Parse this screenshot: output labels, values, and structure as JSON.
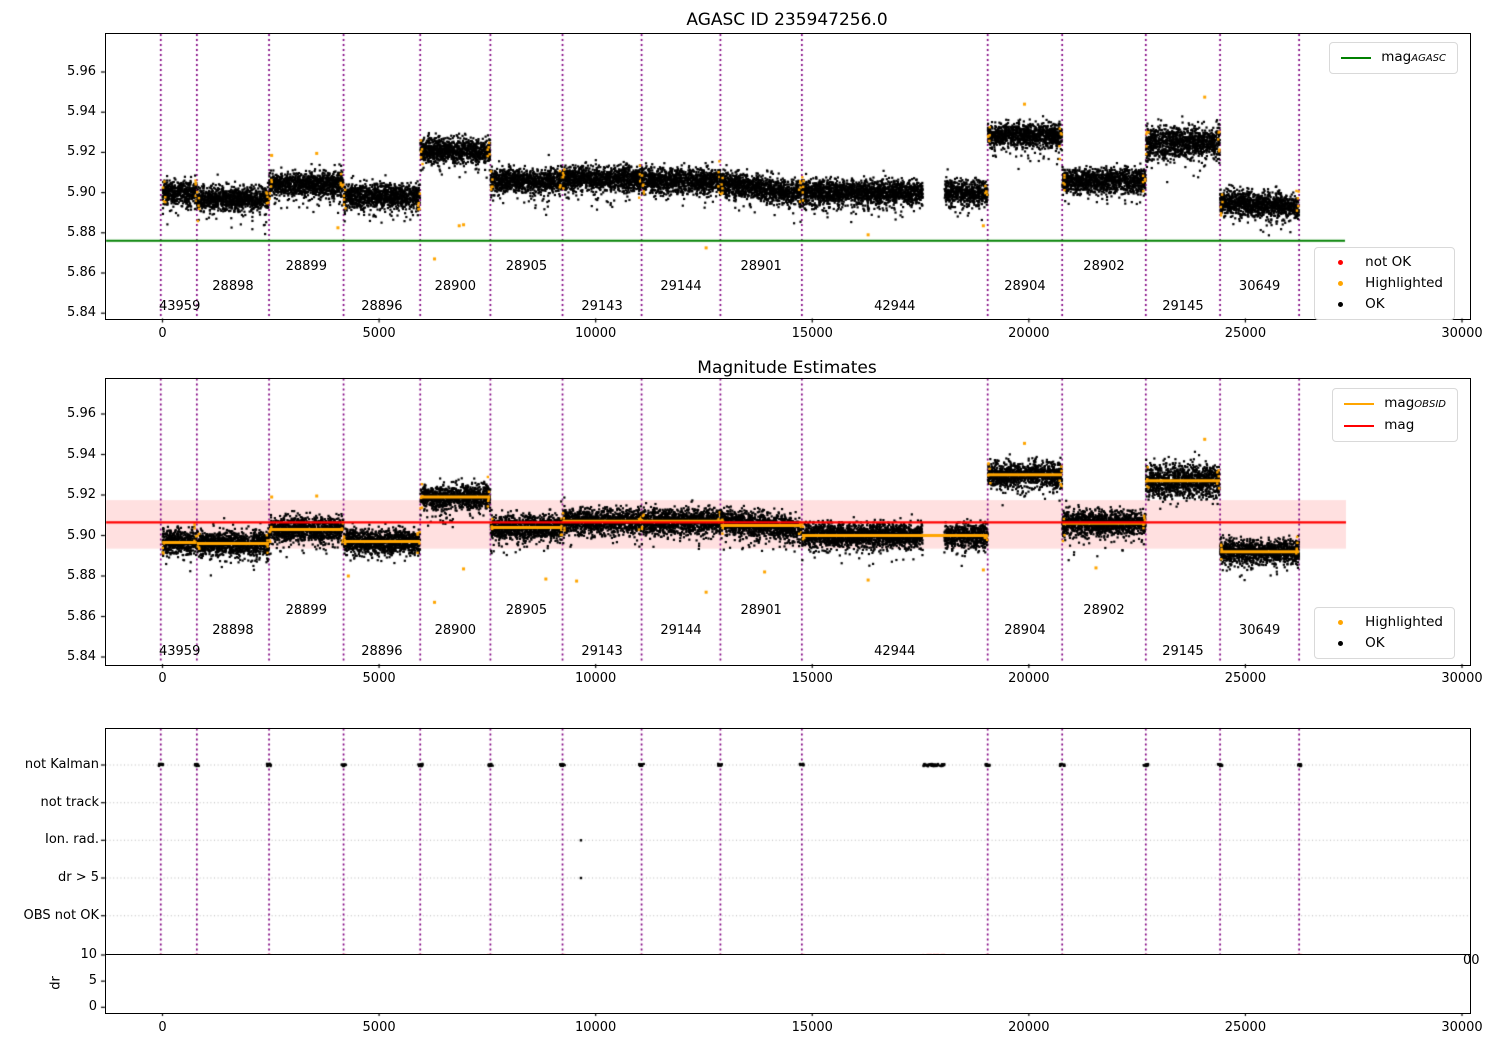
{
  "figure": {
    "colors": {
      "ok": "#000000",
      "highlighted": "#ffa500",
      "not_ok": "#ff0000",
      "mag_agasc": "#008000",
      "mag": "#ff0000",
      "mag_obsid": "#ffa500",
      "boundary": "#800080",
      "band": "rgba(255,0,0,0.12)",
      "grid": "#b8b8b8"
    }
  },
  "top_plot": {
    "title": "AGASC ID 235947256.0",
    "legend_mag": {
      "main": "mag",
      "sub": "AGASC"
    },
    "legend_flags": [
      {
        "label": "not OK",
        "color": "not_ok"
      },
      {
        "label": "Highlighted",
        "color": "highlighted"
      },
      {
        "label": "OK",
        "color": "ok"
      }
    ]
  },
  "middle_plot": {
    "title": "Magnitude Estimates",
    "legend_lines": [
      {
        "main": "mag",
        "sub": "OBSID",
        "color": "mag_obsid"
      },
      {
        "main": "mag",
        "sub": "",
        "color": "mag"
      }
    ],
    "legend_flags": [
      {
        "label": "Highlighted",
        "color": "highlighted"
      },
      {
        "label": "OK",
        "color": "ok"
      }
    ]
  },
  "bottom_plot": {
    "dr_label": "dr",
    "clipped_tick": "00"
  },
  "chart_data": {
    "type": "scatter",
    "titles": [
      "AGASC ID 235947256.0",
      "Magnitude Estimates"
    ],
    "x_ticks": [
      0,
      5000,
      10000,
      15000,
      20000,
      25000,
      30000
    ],
    "x_tick_labels": [
      "0",
      "5000",
      "10000",
      "15000",
      "20000",
      "25000",
      "30000"
    ],
    "mag_yticks": [
      5.84,
      5.86,
      5.88,
      5.9,
      5.92,
      5.94,
      5.96
    ],
    "mag_ytick_labels": [
      "5.84",
      "5.86",
      "5.88",
      "5.90",
      "5.92",
      "5.94",
      "5.96"
    ],
    "mag_agasc": 5.876,
    "mag": 5.9065,
    "mag_band": [
      5.8935,
      5.9175
    ],
    "data_gap": [
      17550,
      18050
    ],
    "boundaries": [
      -40,
      793,
      2460,
      4180,
      5950,
      7570,
      9235,
      11060,
      12880,
      14760,
      19050,
      20770,
      22700,
      24415,
      26240
    ],
    "obsids": [
      {
        "obsid": "43959",
        "start": -40,
        "end": 793,
        "mag_top": 5.9,
        "mag_obsid": 5.8965,
        "row": 2
      },
      {
        "obsid": "28898",
        "start": 793,
        "end": 2460,
        "mag_top": 5.897,
        "mag_obsid": 5.896,
        "row": 1
      },
      {
        "obsid": "28899",
        "start": 2460,
        "end": 4180,
        "mag_top": 5.904,
        "mag_obsid": 5.903,
        "row": 0
      },
      {
        "obsid": "28896",
        "start": 4180,
        "end": 5950,
        "mag_top": 5.898,
        "mag_obsid": 5.897,
        "row": 2
      },
      {
        "obsid": "28900",
        "start": 5950,
        "end": 7570,
        "mag_top": 5.921,
        "mag_obsid": 5.919,
        "row": 1
      },
      {
        "obsid": "28905",
        "start": 7570,
        "end": 9235,
        "mag_top": 5.906,
        "mag_obsid": 5.904,
        "row": 0
      },
      {
        "obsid": "29143",
        "start": 9235,
        "end": 11060,
        "mag_top": 5.907,
        "mag_obsid": 5.907,
        "row": 2
      },
      {
        "obsid": "29144",
        "start": 11060,
        "end": 12880,
        "mag_top": 5.906,
        "mag_obsid": 5.907,
        "row": 1
      },
      {
        "obsid": "28901",
        "start": 12880,
        "end": 14760,
        "mag_top": 5.902,
        "mag_obsid": 5.905,
        "row": 0,
        "trend_top": -0.006,
        "trend_mid": -0.004
      },
      {
        "obsid": "42944",
        "start": 14760,
        "end": 19050,
        "mag_top": 5.9,
        "mag_obsid": 5.9,
        "row": 2,
        "has_gap": true
      },
      {
        "obsid": "28904",
        "start": 19050,
        "end": 20770,
        "mag_top": 5.9285,
        "mag_obsid": 5.93,
        "row": 1
      },
      {
        "obsid": "28902",
        "start": 20770,
        "end": 22700,
        "mag_top": 5.906,
        "mag_obsid": 5.906,
        "row": 0
      },
      {
        "obsid": "29145",
        "start": 22700,
        "end": 24415,
        "mag_top": 5.925,
        "mag_obsid": 5.927,
        "row": 2,
        "spread_top": 1.3,
        "spread_mid": 1.4
      },
      {
        "obsid": "30649",
        "start": 24415,
        "end": 26240,
        "mag_top": 5.894,
        "mag_obsid": 5.892,
        "row": 1,
        "trend_top": -0.003
      }
    ],
    "highlighted_outliers_top": [
      [
        2520,
        5.9185
      ],
      [
        3560,
        5.9195
      ],
      [
        4050,
        5.8825
      ],
      [
        6280,
        5.867
      ],
      [
        6850,
        5.8835
      ],
      [
        6950,
        5.884
      ],
      [
        12550,
        5.8725
      ],
      [
        16290,
        5.879
      ],
      [
        18950,
        5.8835
      ],
      [
        19900,
        5.944
      ],
      [
        24060,
        5.9475
      ]
    ],
    "highlighted_outliers_mid": [
      [
        2520,
        5.919
      ],
      [
        3560,
        5.9195
      ],
      [
        4290,
        5.88
      ],
      [
        6280,
        5.867
      ],
      [
        6950,
        5.8835
      ],
      [
        8850,
        5.8785
      ],
      [
        9560,
        5.8775
      ],
      [
        12550,
        5.872
      ],
      [
        13900,
        5.882
      ],
      [
        16290,
        5.878
      ],
      [
        18950,
        5.883
      ],
      [
        19900,
        5.9455
      ],
      [
        21550,
        5.884
      ],
      [
        24060,
        5.9475
      ]
    ],
    "flags": {
      "rows": [
        "not Kalman",
        "not track",
        "Ion. rad.",
        "dr > 5",
        "OBS not OK"
      ],
      "not_kalman_clusters": [
        [
          -40,
          55
        ],
        [
          793,
          55
        ],
        [
          2460,
          55
        ],
        [
          4180,
          55
        ],
        [
          5950,
          55
        ],
        [
          7570,
          55
        ],
        [
          9235,
          55
        ],
        [
          11060,
          55
        ],
        [
          12880,
          55
        ],
        [
          14760,
          55
        ],
        [
          17800,
          250
        ],
        [
          19050,
          55
        ],
        [
          20770,
          55
        ],
        [
          22700,
          55
        ],
        [
          24415,
          55
        ],
        [
          26240,
          55
        ]
      ],
      "ion_rad_x": [
        9660
      ],
      "dr_gt5_x": [
        9660
      ],
      "dr_yticks": [
        0,
        5,
        10
      ],
      "dr_ytick_labels": [
        "0",
        "5",
        "10"
      ],
      "dr_red_clusters": [
        [
          -40,
          55
        ],
        [
          793,
          55
        ],
        [
          2460,
          55
        ],
        [
          4180,
          55
        ],
        [
          5950,
          55
        ],
        [
          7570,
          55
        ],
        [
          9235,
          55
        ],
        [
          9660,
          5
        ],
        [
          11060,
          55
        ],
        [
          12880,
          55
        ],
        [
          14760,
          55
        ],
        [
          17800,
          250
        ],
        [
          19050,
          55
        ],
        [
          20770,
          55
        ],
        [
          22700,
          55
        ],
        [
          24415,
          55
        ],
        [
          26240,
          55
        ]
      ],
      "dr_track_range": [
        -60,
        26260
      ]
    }
  }
}
